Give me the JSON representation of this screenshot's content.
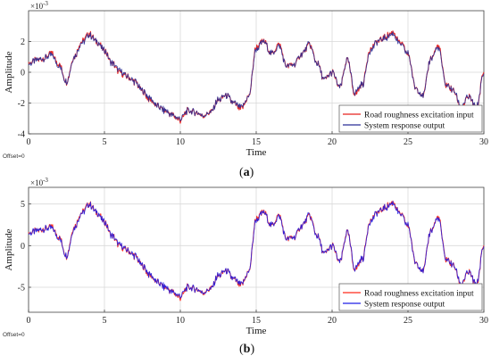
{
  "chart_data": [
    {
      "type": "line",
      "caption_prefix": "(",
      "caption_letter": "a",
      "caption_suffix": ")",
      "title": "",
      "xlabel": "Time",
      "ylabel": "Amplitude",
      "y_multiplier": "×10",
      "y_exponent": "-3",
      "offset_text": "Offset=0",
      "xlim": [
        0,
        30
      ],
      "ylim": [
        -4,
        4
      ],
      "xticks": [
        0,
        5,
        10,
        15,
        20,
        25,
        30
      ],
      "yticks": [
        -4,
        -2,
        0,
        2
      ],
      "grid": true,
      "legend_placement": "bottom-right",
      "x": [
        0,
        0.5,
        1,
        1.5,
        2,
        2.5,
        3,
        3.5,
        4,
        4.5,
        5,
        5.5,
        6,
        6.5,
        7,
        7.5,
        8,
        8.5,
        9,
        9.5,
        10,
        10.5,
        11,
        11.5,
        12,
        12.5,
        13,
        13.5,
        14,
        14.5,
        15,
        15.5,
        16,
        16.5,
        17,
        17.5,
        18,
        18.5,
        19,
        19.5,
        20,
        20.5,
        21,
        21.5,
        22,
        22.5,
        23,
        23.5,
        24,
        24.5,
        25,
        25.5,
        26,
        26.5,
        27,
        27.5,
        28,
        28.5,
        29,
        29.5,
        30
      ],
      "series": [
        {
          "name": "Road roughness excitation input",
          "color": "#e8211d",
          "values": [
            0.6,
            0.8,
            0.9,
            1.2,
            0.5,
            -0.6,
            1.0,
            2.0,
            2.5,
            2.0,
            1.4,
            0.6,
            0.0,
            -0.3,
            -0.6,
            -1.2,
            -1.8,
            -2.2,
            -2.5,
            -2.8,
            -3.1,
            -2.5,
            -2.6,
            -2.8,
            -2.6,
            -1.8,
            -1.5,
            -2.0,
            -2.4,
            -1.6,
            1.6,
            2.0,
            1.2,
            1.8,
            0.4,
            0.5,
            1.2,
            1.8,
            0.6,
            -0.5,
            0.0,
            -1.0,
            0.8,
            -1.4,
            -0.8,
            1.5,
            2.0,
            2.3,
            2.6,
            1.9,
            1.2,
            -1.0,
            -1.5,
            0.9,
            1.7,
            -0.8,
            -1.2,
            -2.3,
            -1.6,
            -2.4,
            0.0
          ]
        },
        {
          "name": "System response output",
          "color": "#2a2f96",
          "values": [
            0.5,
            0.8,
            0.9,
            1.1,
            0.4,
            -0.6,
            1.0,
            1.9,
            2.4,
            2.0,
            1.4,
            0.6,
            0.1,
            -0.3,
            -0.6,
            -1.2,
            -1.7,
            -2.2,
            -2.5,
            -2.8,
            -3.0,
            -2.5,
            -2.6,
            -2.8,
            -2.6,
            -1.8,
            -1.5,
            -2.0,
            -2.3,
            -1.6,
            1.5,
            2.0,
            1.2,
            1.7,
            0.4,
            0.5,
            1.2,
            1.8,
            0.6,
            -0.5,
            0.0,
            -1.0,
            0.8,
            -1.3,
            -0.8,
            1.4,
            2.0,
            2.2,
            2.5,
            1.8,
            1.2,
            -1.0,
            -1.5,
            0.9,
            1.6,
            -0.8,
            -1.2,
            -2.2,
            -1.6,
            -2.3,
            -0.1
          ]
        }
      ]
    },
    {
      "type": "line",
      "caption_prefix": "(",
      "caption_letter": "b",
      "caption_suffix": ")",
      "title": "",
      "xlabel": "Time",
      "ylabel": "Amplitude",
      "y_multiplier": "×10",
      "y_exponent": "-3",
      "offset_text": "Offset=0",
      "xlim": [
        0,
        30
      ],
      "ylim": [
        -8,
        7
      ],
      "xticks": [
        0,
        5,
        10,
        15,
        20,
        25,
        30
      ],
      "yticks": [
        -5,
        0,
        5
      ],
      "grid": true,
      "legend_placement": "bottom-right",
      "x": [
        0,
        0.5,
        1,
        1.5,
        2,
        2.5,
        3,
        3.5,
        4,
        4.5,
        5,
        5.5,
        6,
        6.5,
        7,
        7.5,
        8,
        8.5,
        9,
        9.5,
        10,
        10.5,
        11,
        11.5,
        12,
        12.5,
        13,
        13.5,
        14,
        14.5,
        15,
        15.5,
        16,
        16.5,
        17,
        17.5,
        18,
        18.5,
        19,
        19.5,
        20,
        20.5,
        21,
        21.5,
        22,
        22.5,
        23,
        23.5,
        24,
        24.5,
        25,
        25.5,
        26,
        26.5,
        27,
        27.5,
        28,
        28.5,
        29,
        29.5,
        30
      ],
      "series": [
        {
          "name": "Road roughness excitation input",
          "color": "#ff2a1a",
          "values": [
            1.5,
            1.8,
            2.0,
            2.2,
            1.0,
            -1.2,
            2.2,
            4.0,
            5.0,
            4.0,
            2.8,
            1.2,
            0.0,
            -0.6,
            -1.2,
            -2.4,
            -3.6,
            -4.4,
            -5.0,
            -5.6,
            -6.2,
            -5.0,
            -5.2,
            -5.6,
            -5.2,
            -3.6,
            -3.0,
            -4.0,
            -4.8,
            -3.2,
            3.2,
            4.0,
            2.4,
            3.6,
            0.8,
            1.0,
            2.4,
            3.6,
            1.2,
            -1.0,
            0.0,
            -2.0,
            1.6,
            -2.8,
            -1.6,
            3.0,
            4.0,
            4.6,
            5.2,
            3.8,
            2.4,
            -2.0,
            -3.0,
            1.8,
            3.4,
            -1.6,
            -2.4,
            -4.6,
            -3.2,
            -4.8,
            0.0
          ]
        },
        {
          "name": "System response output",
          "color": "#1f1fe6",
          "values": [
            1.4,
            1.8,
            2.0,
            2.1,
            0.9,
            -1.2,
            2.1,
            3.9,
            4.9,
            4.0,
            2.8,
            1.2,
            0.1,
            -0.6,
            -1.2,
            -2.4,
            -3.5,
            -4.4,
            -5.0,
            -5.6,
            -6.0,
            -5.0,
            -5.2,
            -5.6,
            -5.2,
            -3.6,
            -3.0,
            -4.0,
            -4.7,
            -3.2,
            3.1,
            4.0,
            2.4,
            3.5,
            0.8,
            1.0,
            2.4,
            3.6,
            1.2,
            -1.0,
            0.0,
            -2.0,
            1.6,
            -2.7,
            -1.6,
            2.9,
            4.0,
            4.5,
            5.1,
            3.7,
            2.4,
            -2.0,
            -3.0,
            1.8,
            3.3,
            -1.6,
            -2.4,
            -4.5,
            -3.2,
            -4.7,
            -0.1
          ]
        }
      ]
    }
  ]
}
